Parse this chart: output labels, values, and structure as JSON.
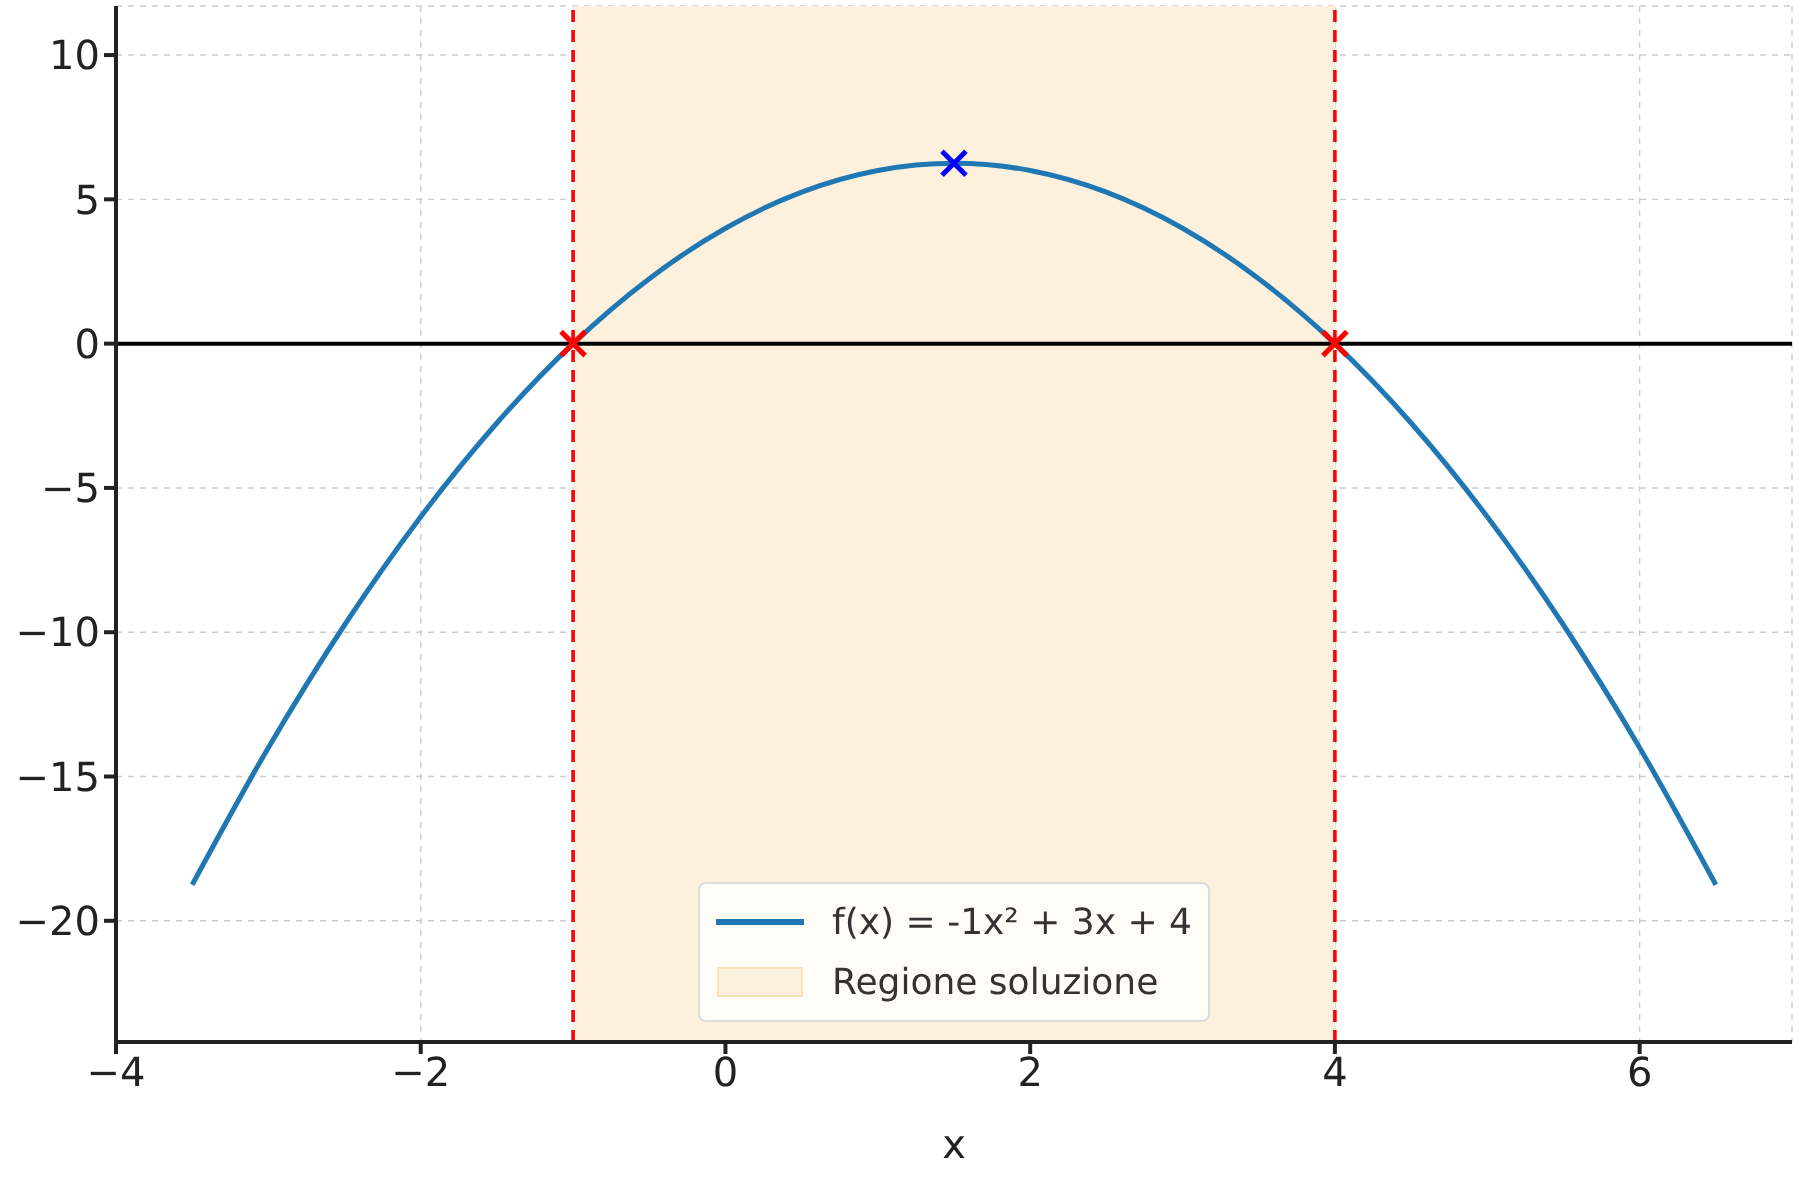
{
  "chart_data": {
    "type": "line",
    "xlabel": "x",
    "xlim": [
      -4,
      7
    ],
    "ylim": [
      -24.2,
      11.7
    ],
    "xticks": [
      -4,
      -2,
      0,
      2,
      4,
      6
    ],
    "yticks": [
      -20,
      -15,
      -10,
      -5,
      0,
      5,
      10
    ],
    "grid": true,
    "legend": "bottom",
    "series": [
      {
        "name": "f(x) = -1x² + 3x + 4",
        "color": "#1f77b4",
        "marker": "none",
        "line_style": "solid",
        "x": [
          -3.5,
          -3,
          -2.5,
          -2,
          -1.5,
          -1,
          -0.5,
          0,
          0.5,
          1,
          1.5,
          2,
          2.5,
          3,
          3.5,
          4,
          4.5,
          5,
          5.5,
          6,
          6.5
        ],
        "values": [
          -18.75,
          -14,
          -9.75,
          -6,
          -2.75,
          0,
          2.25,
          4,
          5.25,
          6,
          6.25,
          6,
          5.25,
          4,
          2.25,
          0,
          -2.75,
          -6,
          -9.75,
          -14,
          -18.75
        ]
      },
      {
        "type": "scatter",
        "color": "#ff0000",
        "marker": "cross",
        "x": [
          -1,
          4
        ],
        "values": [
          0,
          0
        ]
      },
      {
        "type": "scatter",
        "color": "#0000ff",
        "marker": "cross",
        "x": [
          1.5
        ],
        "values": [
          6.25
        ]
      }
    ],
    "ref_lines": [
      {
        "axis": "x",
        "value": -1,
        "color": "#ff0000",
        "line_style": "dashed"
      },
      {
        "axis": "x",
        "value": 4,
        "color": "#ff0000",
        "line_style": "dashed"
      },
      {
        "axis": "y",
        "value": 0,
        "color": "#000000",
        "line_style": "solid"
      }
    ],
    "bands": [
      {
        "axis": "x",
        "from": -1,
        "to": 4,
        "label": "Regione soluzione",
        "color": "#fdf1dd"
      }
    ]
  }
}
